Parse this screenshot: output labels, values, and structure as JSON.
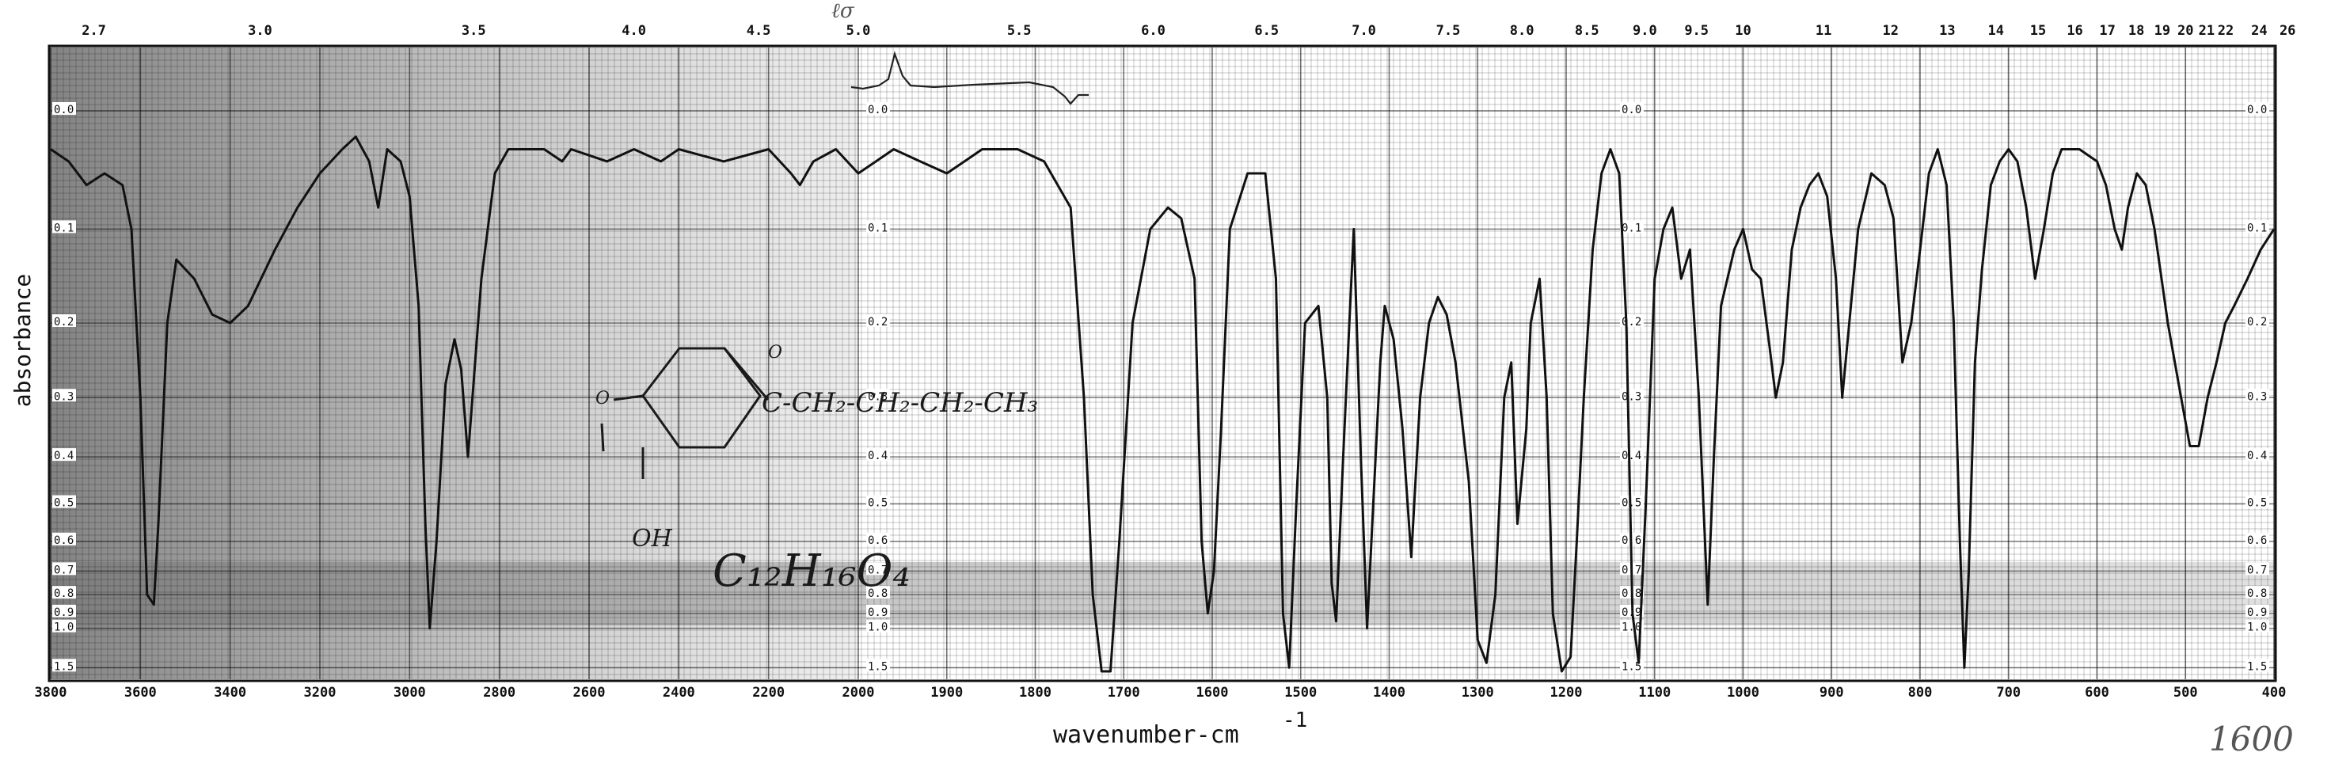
{
  "chart_data": {
    "type": "line",
    "title": "",
    "xlabel": "wavenumber-cm",
    "xlabel_superscript": "-1",
    "ylabel": "absorbance",
    "x_scale": "reciprocal-piecewise",
    "wavenumber_ticks": [
      3800,
      3600,
      3400,
      3200,
      3000,
      2800,
      2600,
      2400,
      2200,
      2000,
      1900,
      1800,
      1700,
      1600,
      1500,
      1400,
      1300,
      1200,
      1100,
      1000,
      900,
      800,
      700,
      600,
      500,
      400
    ],
    "wavelength_ticks": [
      "2.7",
      "3.0",
      "3.5",
      "4.0",
      "4.5",
      "5.0",
      "5.5",
      "6.0",
      "6.5",
      "7.0",
      "7.5",
      "8.0",
      "8.5",
      "9.0",
      "9.5",
      "10",
      "11",
      "12",
      "13",
      "14",
      "15",
      "16",
      "17",
      "18",
      "19",
      "20",
      "21",
      "22",
      "24",
      "26"
    ],
    "absorbance_ticks": [
      "0.0",
      "0.1",
      "0.2",
      "0.3",
      "0.4",
      "0.5",
      "0.6",
      "0.7",
      "0.8",
      "0.9",
      "1.0",
      "1.5"
    ],
    "grid": true,
    "series": [
      {
        "points": [
          [
            3800,
            0.03
          ],
          [
            3760,
            0.04
          ],
          [
            3720,
            0.06
          ],
          [
            3680,
            0.05
          ],
          [
            3640,
            0.06
          ],
          [
            3620,
            0.1
          ],
          [
            3600,
            0.3
          ],
          [
            3585,
            0.8
          ],
          [
            3570,
            0.85
          ],
          [
            3560,
            0.55
          ],
          [
            3540,
            0.2
          ],
          [
            3520,
            0.13
          ],
          [
            3480,
            0.15
          ],
          [
            3440,
            0.19
          ],
          [
            3400,
            0.2
          ],
          [
            3360,
            0.18
          ],
          [
            3300,
            0.12
          ],
          [
            3250,
            0.08
          ],
          [
            3200,
            0.05
          ],
          [
            3150,
            0.03
          ],
          [
            3120,
            0.02
          ],
          [
            3090,
            0.04
          ],
          [
            3070,
            0.08
          ],
          [
            3050,
            0.03
          ],
          [
            3020,
            0.04
          ],
          [
            3000,
            0.07
          ],
          [
            2980,
            0.18
          ],
          [
            2965,
            0.55
          ],
          [
            2955,
            1.0
          ],
          [
            2940,
            0.6
          ],
          [
            2920,
            0.28
          ],
          [
            2900,
            0.22
          ],
          [
            2885,
            0.26
          ],
          [
            2870,
            0.4
          ],
          [
            2860,
            0.3
          ],
          [
            2840,
            0.15
          ],
          [
            2810,
            0.05
          ],
          [
            2780,
            0.03
          ],
          [
            2700,
            0.03
          ],
          [
            2660,
            0.04
          ],
          [
            2640,
            0.03
          ],
          [
            2560,
            0.04
          ],
          [
            2500,
            0.03
          ],
          [
            2440,
            0.04
          ],
          [
            2400,
            0.03
          ],
          [
            2300,
            0.04
          ],
          [
            2200,
            0.03
          ],
          [
            2150,
            0.05
          ],
          [
            2130,
            0.06
          ],
          [
            2100,
            0.04
          ],
          [
            2050,
            0.03
          ],
          [
            2000,
            0.05
          ],
          [
            1980,
            0.04
          ],
          [
            1960,
            0.03
          ],
          [
            1930,
            0.04
          ],
          [
            1900,
            0.05
          ],
          [
            1880,
            0.04
          ],
          [
            1860,
            0.03
          ],
          [
            1820,
            0.03
          ],
          [
            1790,
            0.04
          ],
          [
            1760,
            0.08
          ],
          [
            1745,
            0.3
          ],
          [
            1735,
            0.8
          ],
          [
            1725,
            1.6
          ],
          [
            1715,
            1.6
          ],
          [
            1705,
            0.6
          ],
          [
            1690,
            0.2
          ],
          [
            1670,
            0.1
          ],
          [
            1650,
            0.08
          ],
          [
            1635,
            0.09
          ],
          [
            1620,
            0.15
          ],
          [
            1612,
            0.6
          ],
          [
            1605,
            0.9
          ],
          [
            1598,
            0.7
          ],
          [
            1590,
            0.35
          ],
          [
            1580,
            0.1
          ],
          [
            1560,
            0.05
          ],
          [
            1540,
            0.05
          ],
          [
            1528,
            0.15
          ],
          [
            1520,
            0.9
          ],
          [
            1513,
            1.5
          ],
          [
            1505,
            0.5
          ],
          [
            1495,
            0.2
          ],
          [
            1480,
            0.18
          ],
          [
            1470,
            0.3
          ],
          [
            1465,
            0.75
          ],
          [
            1460,
            0.95
          ],
          [
            1452,
            0.4
          ],
          [
            1445,
            0.2
          ],
          [
            1440,
            0.1
          ],
          [
            1432,
            0.4
          ],
          [
            1425,
            1.0
          ],
          [
            1418,
            0.5
          ],
          [
            1410,
            0.25
          ],
          [
            1405,
            0.18
          ],
          [
            1395,
            0.22
          ],
          [
            1385,
            0.35
          ],
          [
            1375,
            0.65
          ],
          [
            1365,
            0.3
          ],
          [
            1355,
            0.2
          ],
          [
            1345,
            0.17
          ],
          [
            1335,
            0.19
          ],
          [
            1325,
            0.25
          ],
          [
            1310,
            0.45
          ],
          [
            1300,
            1.1
          ],
          [
            1290,
            1.4
          ],
          [
            1280,
            0.8
          ],
          [
            1270,
            0.3
          ],
          [
            1262,
            0.25
          ],
          [
            1255,
            0.55
          ],
          [
            1245,
            0.35
          ],
          [
            1240,
            0.2
          ],
          [
            1230,
            0.15
          ],
          [
            1222,
            0.3
          ],
          [
            1215,
            0.9
          ],
          [
            1205,
            1.6
          ],
          [
            1195,
            1.3
          ],
          [
            1188,
            0.6
          ],
          [
            1180,
            0.3
          ],
          [
            1170,
            0.12
          ],
          [
            1160,
            0.05
          ],
          [
            1150,
            0.03
          ],
          [
            1140,
            0.05
          ],
          [
            1132,
            0.2
          ],
          [
            1125,
            0.9
          ],
          [
            1118,
            1.4
          ],
          [
            1110,
            0.5
          ],
          [
            1100,
            0.15
          ],
          [
            1090,
            0.1
          ],
          [
            1080,
            0.08
          ],
          [
            1070,
            0.15
          ],
          [
            1060,
            0.12
          ],
          [
            1050,
            0.3
          ],
          [
            1040,
            0.85
          ],
          [
            1033,
            0.4
          ],
          [
            1025,
            0.18
          ],
          [
            1010,
            0.12
          ],
          [
            1000,
            0.1
          ],
          [
            990,
            0.14
          ],
          [
            980,
            0.15
          ],
          [
            970,
            0.23
          ],
          [
            963,
            0.3
          ],
          [
            955,
            0.25
          ],
          [
            945,
            0.12
          ],
          [
            935,
            0.08
          ],
          [
            925,
            0.06
          ],
          [
            915,
            0.05
          ],
          [
            905,
            0.07
          ],
          [
            895,
            0.15
          ],
          [
            888,
            0.3
          ],
          [
            880,
            0.2
          ],
          [
            870,
            0.1
          ],
          [
            855,
            0.05
          ],
          [
            840,
            0.06
          ],
          [
            830,
            0.09
          ],
          [
            820,
            0.25
          ],
          [
            810,
            0.2
          ],
          [
            800,
            0.12
          ],
          [
            790,
            0.05
          ],
          [
            780,
            0.03
          ],
          [
            770,
            0.06
          ],
          [
            762,
            0.2
          ],
          [
            755,
            0.6
          ],
          [
            750,
            1.5
          ],
          [
            745,
            0.7
          ],
          [
            738,
            0.25
          ],
          [
            730,
            0.14
          ],
          [
            720,
            0.06
          ],
          [
            710,
            0.04
          ],
          [
            700,
            0.03
          ],
          [
            690,
            0.04
          ],
          [
            680,
            0.08
          ],
          [
            670,
            0.15
          ],
          [
            660,
            0.1
          ],
          [
            650,
            0.05
          ],
          [
            640,
            0.03
          ],
          [
            620,
            0.03
          ],
          [
            600,
            0.04
          ],
          [
            590,
            0.06
          ],
          [
            580,
            0.1
          ],
          [
            572,
            0.12
          ],
          [
            565,
            0.08
          ],
          [
            555,
            0.05
          ],
          [
            545,
            0.06
          ],
          [
            535,
            0.1
          ],
          [
            520,
            0.2
          ],
          [
            505,
            0.3
          ],
          [
            495,
            0.38
          ],
          [
            485,
            0.38
          ],
          [
            475,
            0.3
          ],
          [
            465,
            0.25
          ],
          [
            455,
            0.2
          ],
          [
            445,
            0.18
          ],
          [
            430,
            0.15
          ],
          [
            415,
            0.12
          ],
          [
            400,
            0.1
          ]
        ]
      }
    ]
  },
  "annotations": {
    "formula": "C₁₂H₁₆O₄",
    "chain": "C-CH₂-CH₂-CH₂-CH₃",
    "carbonyl_o": "O",
    "ring_subst_1": "O",
    "ring_subst_2": "OH",
    "stamp": "1600",
    "corner_note": "ℓσ"
  },
  "colors": {
    "ink": "#111111",
    "paper": "#ffffff",
    "shade": "#8a8a8a",
    "pen": "#222222"
  }
}
